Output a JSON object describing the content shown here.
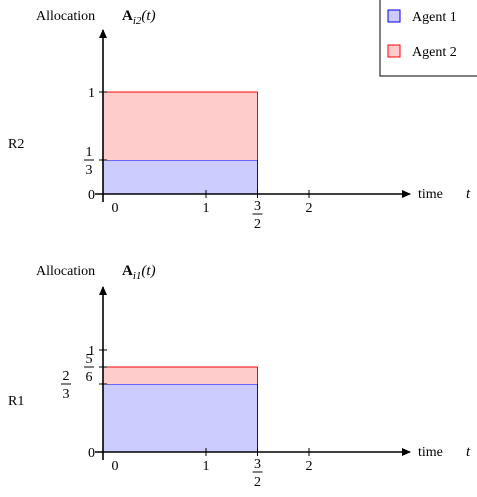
{
  "legend": {
    "placement": "top-right",
    "items": [
      {
        "label": "Agent 1",
        "fill": "#ccccff",
        "stroke": "#0000ff"
      },
      {
        "label": "Agent 2",
        "fill": "#ffcccc",
        "stroke": "#ff0000"
      }
    ]
  },
  "chart_data": [
    {
      "type": "area",
      "resource_label": "R2",
      "ylabel": "Allocation",
      "ylabel_symbol": "A",
      "ylabel_subscript": "i2",
      "ylabel_arg": "(t)",
      "xlabel": "time",
      "xlabel_symbol": "t",
      "xlim": [
        0,
        2.3
      ],
      "ylim": [
        0,
        1.2
      ],
      "x_ticks": [
        {
          "value": 0,
          "label": "0"
        },
        {
          "value": 1,
          "label": "1"
        },
        {
          "value": 1.5,
          "label": "3/2",
          "num": "3",
          "den": "2"
        },
        {
          "value": 2,
          "label": "2"
        }
      ],
      "y_ticks": [
        {
          "value": 0,
          "label": "0"
        },
        {
          "value": 0.3333,
          "label": "1/3",
          "num": "1",
          "den": "3"
        },
        {
          "value": 1,
          "label": "1"
        }
      ],
      "series": [
        {
          "name": "Agent 1",
          "x": [
            0,
            1.5
          ],
          "y0": [
            0,
            0
          ],
          "y1": [
            0.3333,
            0.3333
          ]
        },
        {
          "name": "Agent 2",
          "x": [
            0,
            1.5
          ],
          "y0": [
            0.3333,
            0.3333
          ],
          "y1": [
            1,
            1
          ]
        }
      ]
    },
    {
      "type": "area",
      "resource_label": "R1",
      "ylabel": "Allocation",
      "ylabel_symbol": "A",
      "ylabel_subscript": "i1",
      "ylabel_arg": "(t)",
      "xlabel": "time",
      "xlabel_symbol": "t",
      "xlim": [
        0,
        2.3
      ],
      "ylim": [
        0,
        1.2
      ],
      "x_ticks": [
        {
          "value": 0,
          "label": "0"
        },
        {
          "value": 1,
          "label": "1"
        },
        {
          "value": 1.5,
          "label": "3/2",
          "num": "3",
          "den": "2"
        },
        {
          "value": 2,
          "label": "2"
        }
      ],
      "y_ticks": [
        {
          "value": 0,
          "label": "0"
        },
        {
          "value": 0.6667,
          "label": "2/3",
          "num": "2",
          "den": "3"
        },
        {
          "value": 0.8333,
          "label": "5/6",
          "num": "5",
          "den": "6"
        },
        {
          "value": 1,
          "label": "1"
        }
      ],
      "series": [
        {
          "name": "Agent 1",
          "x": [
            0,
            1.5
          ],
          "y0": [
            0,
            0
          ],
          "y1": [
            0.6667,
            0.6667
          ]
        },
        {
          "name": "Agent 2",
          "x": [
            0,
            1.5
          ],
          "y0": [
            0.6667,
            0.6667
          ],
          "y1": [
            0.8333,
            0.8333
          ]
        }
      ]
    }
  ]
}
